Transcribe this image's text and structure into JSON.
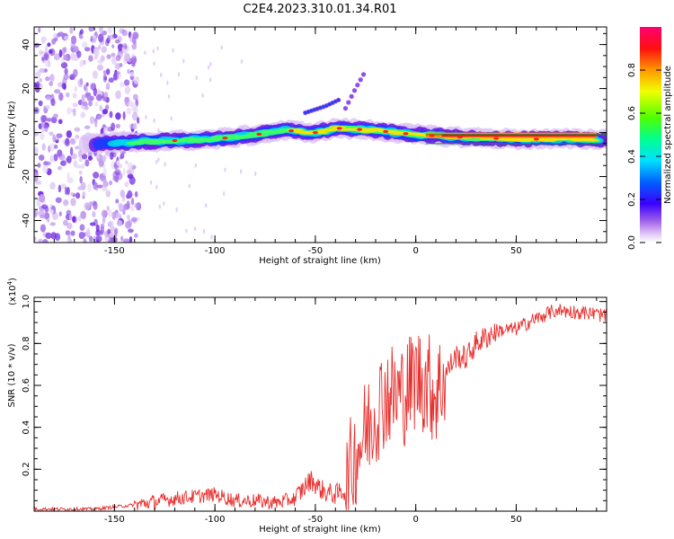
{
  "title": "C2E4.2023.310.01.34.R01",
  "chart_data": [
    {
      "type": "heatmap",
      "xlabel": "Height of straight line (km)",
      "ylabel": "Frequency (Hz)",
      "xlim": [
        -190,
        95
      ],
      "ylim": [
        -50,
        48
      ],
      "x_ticks": [
        -150,
        -100,
        -50,
        0,
        50
      ],
      "y_ticks": [
        -40,
        -20,
        0,
        20,
        40
      ],
      "grid": false,
      "colorbar": {
        "label": "Normalized spectral amplitude",
        "range": [
          0,
          1
        ],
        "ticks": [
          0.0,
          0.2,
          0.4,
          0.6,
          0.8
        ],
        "colors": [
          "#ffffff",
          "#d8b8f0",
          "#8a2be2",
          "#3a00ff",
          "#0050ff",
          "#00d8ff",
          "#00ff80",
          "#60ff00",
          "#ffff00",
          "#ff9000",
          "#ff0000",
          "#ff0070"
        ]
      },
      "features": [
        {
          "x": [
            -160,
            -130,
            -100,
            -80,
            -65,
            -50,
            -40,
            -20,
            0,
            20,
            50,
            80,
            95
          ],
          "y": [
            -5,
            -4,
            -3,
            -1,
            1,
            0,
            2,
            1,
            -1,
            -2,
            -3,
            -3,
            -3
          ]
        },
        {
          "x": [
            -55,
            -45,
            -38
          ],
          "y": [
            9,
            12,
            15
          ]
        },
        {
          "x": [
            -35,
            -30,
            -25
          ],
          "y": [
            11,
            20,
            28
          ]
        }
      ]
    },
    {
      "type": "line",
      "ylabel": "SNR (10 * v/v)",
      "y_exponent": "(x10",
      "y_exponent_power": "4",
      "xlabel": "Height of straight line (km)",
      "xlim": [
        -190,
        95
      ],
      "ylim": [
        0,
        1.02
      ],
      "x_ticks": [
        -150,
        -100,
        -50,
        0,
        50
      ],
      "y_ticks": [
        0.2,
        0.4,
        0.6,
        0.8,
        1.0
      ],
      "grid": false,
      "series": [
        {
          "color": "#e8302e",
          "x": [
            -190,
            -160,
            -140,
            -120,
            -100,
            -90,
            -80,
            -70,
            -60,
            -55,
            -52,
            -48,
            -45,
            -40,
            -35,
            -30,
            -25,
            -20,
            -15,
            -10,
            -5,
            0,
            5,
            10,
            15,
            20,
            25,
            30,
            40,
            50,
            60,
            70,
            80,
            90,
            95
          ],
          "y": [
            0.01,
            0.01,
            0.03,
            0.06,
            0.08,
            0.05,
            0.05,
            0.04,
            0.06,
            0.12,
            0.15,
            0.11,
            0.09,
            0.08,
            0.1,
            0.28,
            0.38,
            0.48,
            0.56,
            0.55,
            0.57,
            0.64,
            0.62,
            0.56,
            0.66,
            0.74,
            0.73,
            0.8,
            0.86,
            0.87,
            0.92,
            0.96,
            0.95,
            0.94,
            0.93
          ]
        }
      ]
    }
  ]
}
